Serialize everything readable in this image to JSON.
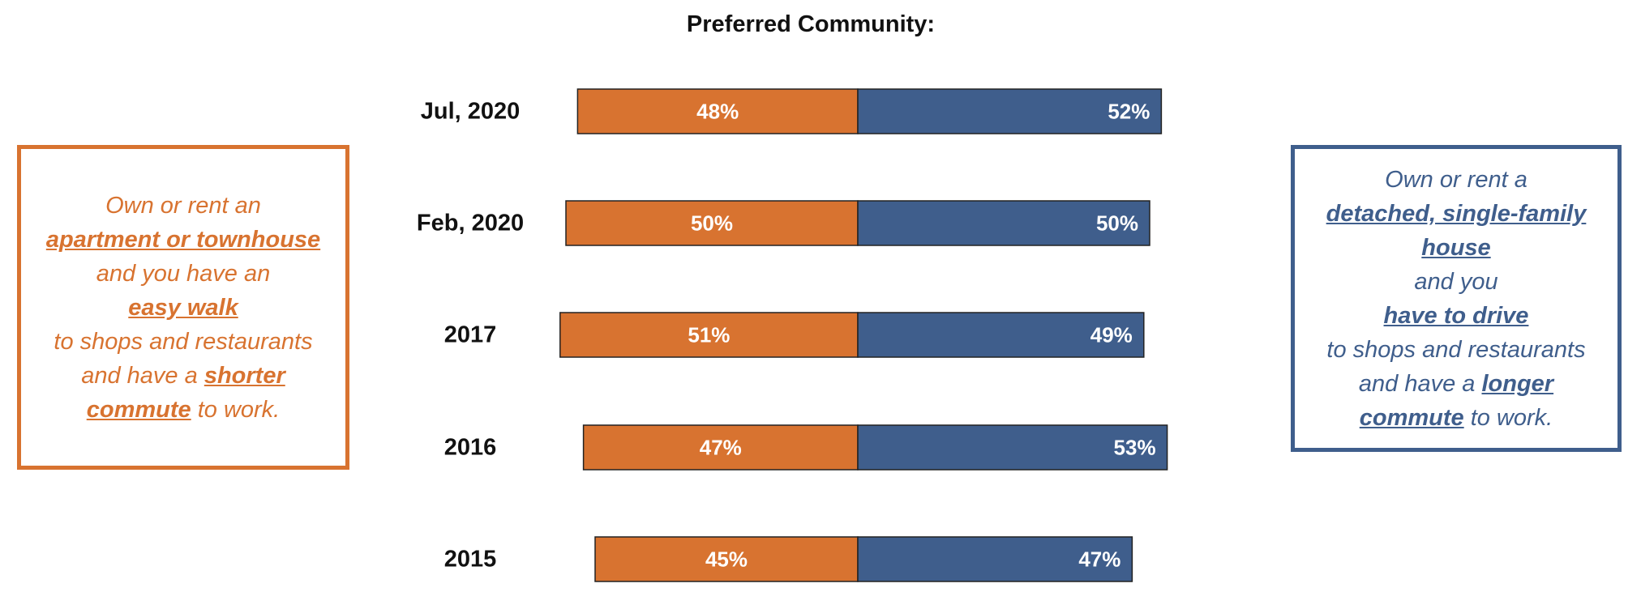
{
  "chart_data": {
    "type": "bar",
    "orientation": "horizontal",
    "stacking": "diverging",
    "title": "Preferred Community:",
    "categories": [
      "Jul, 2020",
      "Feb, 2020",
      "2017",
      "2016",
      "2015"
    ],
    "series": [
      {
        "values": [
          48,
          50,
          51,
          47,
          45
        ],
        "labels": [
          "48%",
          "50%",
          "51%",
          "47%",
          "45%"
        ],
        "color": "#D87330"
      },
      {
        "values": [
          52,
          50,
          49,
          53,
          47
        ],
        "labels": [
          "52%",
          "50%",
          "49%",
          "53%",
          "47%"
        ],
        "color": "#3F5E8C"
      }
    ],
    "xlim": [
      0,
      100
    ],
    "grid": false,
    "legend": "none"
  },
  "left_box": {
    "color": "#D87330",
    "lines": [
      [
        {
          "t": "Own or rent an"
        }
      ],
      [
        {
          "t": "apartment or townhouse",
          "em": true
        }
      ],
      [
        {
          "t": "and you have an"
        }
      ],
      [
        {
          "t": "easy walk",
          "em": true
        }
      ],
      [
        {
          "t": "to shops and restaurants"
        }
      ],
      [
        {
          "t": "and have a "
        },
        {
          "t": "shorter",
          "em": true
        }
      ],
      [
        {
          "t": "commute",
          "em": true
        },
        {
          "t": " to work."
        }
      ]
    ]
  },
  "right_box": {
    "color": "#3F5E8C",
    "lines": [
      [
        {
          "t": "Own or rent a"
        }
      ],
      [
        {
          "t": "detached, single-family",
          "em": true
        }
      ],
      [
        {
          "t": "house",
          "em": true
        }
      ],
      [
        {
          "t": "and you"
        }
      ],
      [
        {
          "t": "have to drive",
          "em": true
        }
      ],
      [
        {
          "t": "to shops and restaurants"
        }
      ],
      [
        {
          "t": "and have a "
        },
        {
          "t": "longer",
          "em": true
        }
      ],
      [
        {
          "t": "commute",
          "em": true
        },
        {
          "t": " to work."
        }
      ]
    ]
  }
}
